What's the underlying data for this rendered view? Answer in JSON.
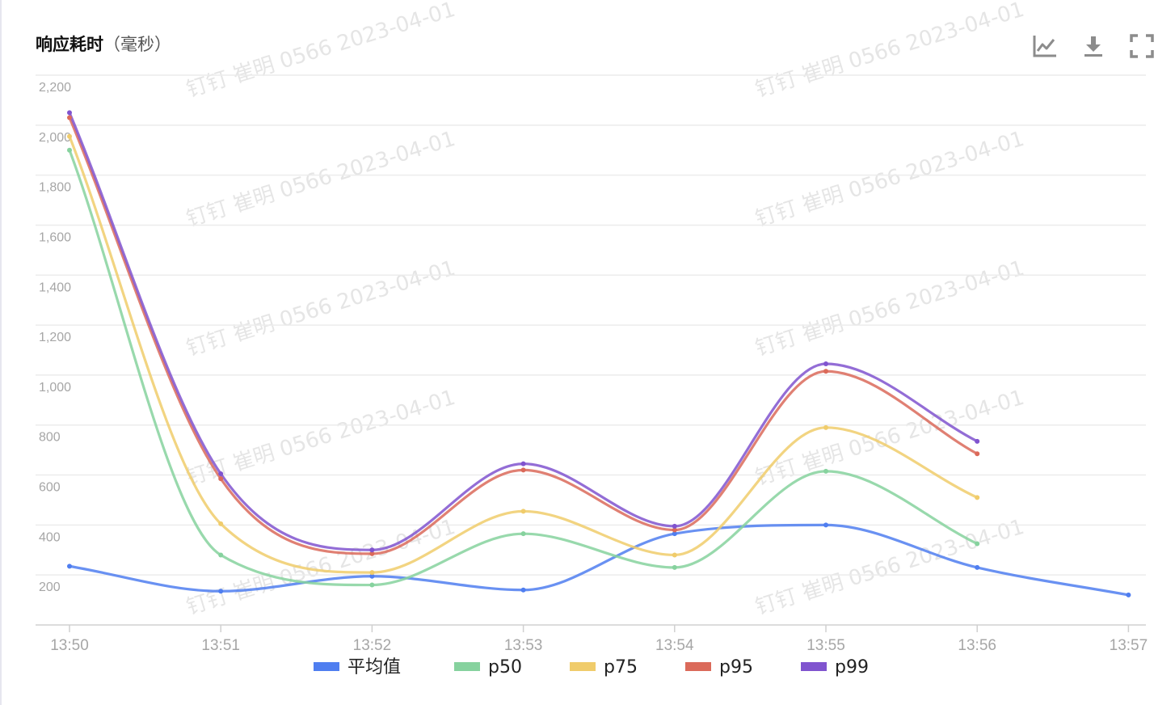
{
  "panel": {
    "title": "响应耗时",
    "subtitle": "（毫秒）"
  },
  "toolbar": {
    "items": [
      {
        "name": "line-chart-icon"
      },
      {
        "name": "download-icon"
      },
      {
        "name": "fullscreen-icon"
      }
    ]
  },
  "watermark": {
    "text": "钉钉 崔明 0566 2023-04-01"
  },
  "chart_data": {
    "type": "line",
    "title": "响应耗时（毫秒）",
    "categories": [
      "13:50",
      "13:51",
      "13:52",
      "13:53",
      "13:54",
      "13:55",
      "13:56",
      "13:57"
    ],
    "ylim": [
      0,
      2200
    ],
    "yticks": [
      200,
      400,
      600,
      800,
      1000,
      1200,
      1400,
      1600,
      1800,
      2000,
      2200
    ],
    "ytick_labels": [
      "200",
      "400",
      "600",
      "800",
      "1,000",
      "1,200",
      "1,400",
      "1,600",
      "1,800",
      "2,000",
      "2,200"
    ],
    "grid": true,
    "legend_position": "bottom",
    "series": [
      {
        "name": "平均值",
        "color": "#4f7ef0",
        "values": [
          235,
          135,
          195,
          140,
          365,
          400,
          230,
          120
        ]
      },
      {
        "name": "p50",
        "color": "#86d29e",
        "values": [
          1900,
          280,
          160,
          365,
          230,
          615,
          325,
          null
        ]
      },
      {
        "name": "p75",
        "color": "#f0cc6b",
        "values": [
          1955,
          405,
          210,
          455,
          280,
          790,
          510,
          null
        ]
      },
      {
        "name": "p95",
        "color": "#db6a5a",
        "values": [
          2030,
          585,
          285,
          620,
          380,
          1015,
          685,
          null
        ]
      },
      {
        "name": "p99",
        "color": "#8054cf",
        "values": [
          2050,
          605,
          300,
          645,
          395,
          1045,
          735,
          null
        ]
      }
    ]
  }
}
